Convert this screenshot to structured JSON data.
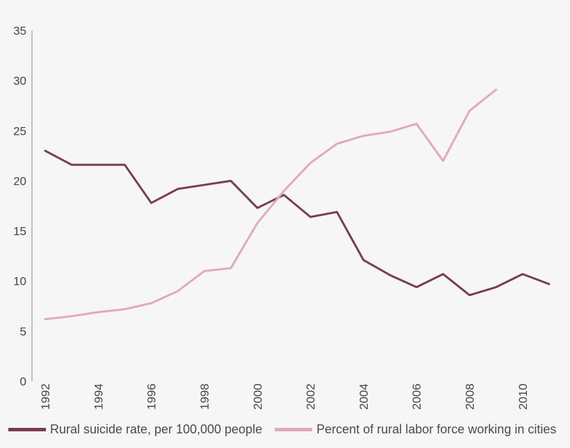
{
  "chart_data": {
    "type": "line",
    "title": "",
    "xlabel": "",
    "ylabel": "",
    "x": [
      1992,
      1993,
      1994,
      1995,
      1996,
      1997,
      1998,
      1999,
      2000,
      2001,
      2002,
      2003,
      2004,
      2005,
      2006,
      2007,
      2008,
      2009,
      2010,
      2011
    ],
    "xlim": [
      1991.5,
      2011.5
    ],
    "ylim": [
      0,
      35
    ],
    "yticks": [
      "0",
      "5",
      "10",
      "15",
      "20",
      "25",
      "30",
      "35"
    ],
    "xticks": [
      "1992",
      "1994",
      "1996",
      "1998",
      "2000",
      "2002",
      "2004",
      "2006",
      "2008",
      "2010"
    ],
    "grid": false,
    "legend_position": "bottom",
    "series": [
      {
        "name": "Rural suicide rate, per 100,000 people",
        "color": "#7a3b55",
        "values": [
          23.0,
          21.6,
          21.6,
          21.6,
          17.8,
          19.2,
          19.6,
          20.0,
          17.3,
          18.6,
          16.4,
          16.9,
          12.1,
          10.6,
          9.4,
          10.7,
          8.6,
          9.4,
          10.7,
          9.7
        ]
      },
      {
        "name": "Percent of rural labor force working in cities",
        "color": "#e2a9b7",
        "values": [
          6.2,
          6.5,
          6.9,
          7.2,
          7.8,
          9.0,
          11.0,
          11.3,
          15.8,
          19.0,
          21.8,
          23.7,
          24.5,
          24.9,
          25.7,
          22.0,
          27.0,
          29.1,
          null,
          null
        ]
      }
    ]
  }
}
